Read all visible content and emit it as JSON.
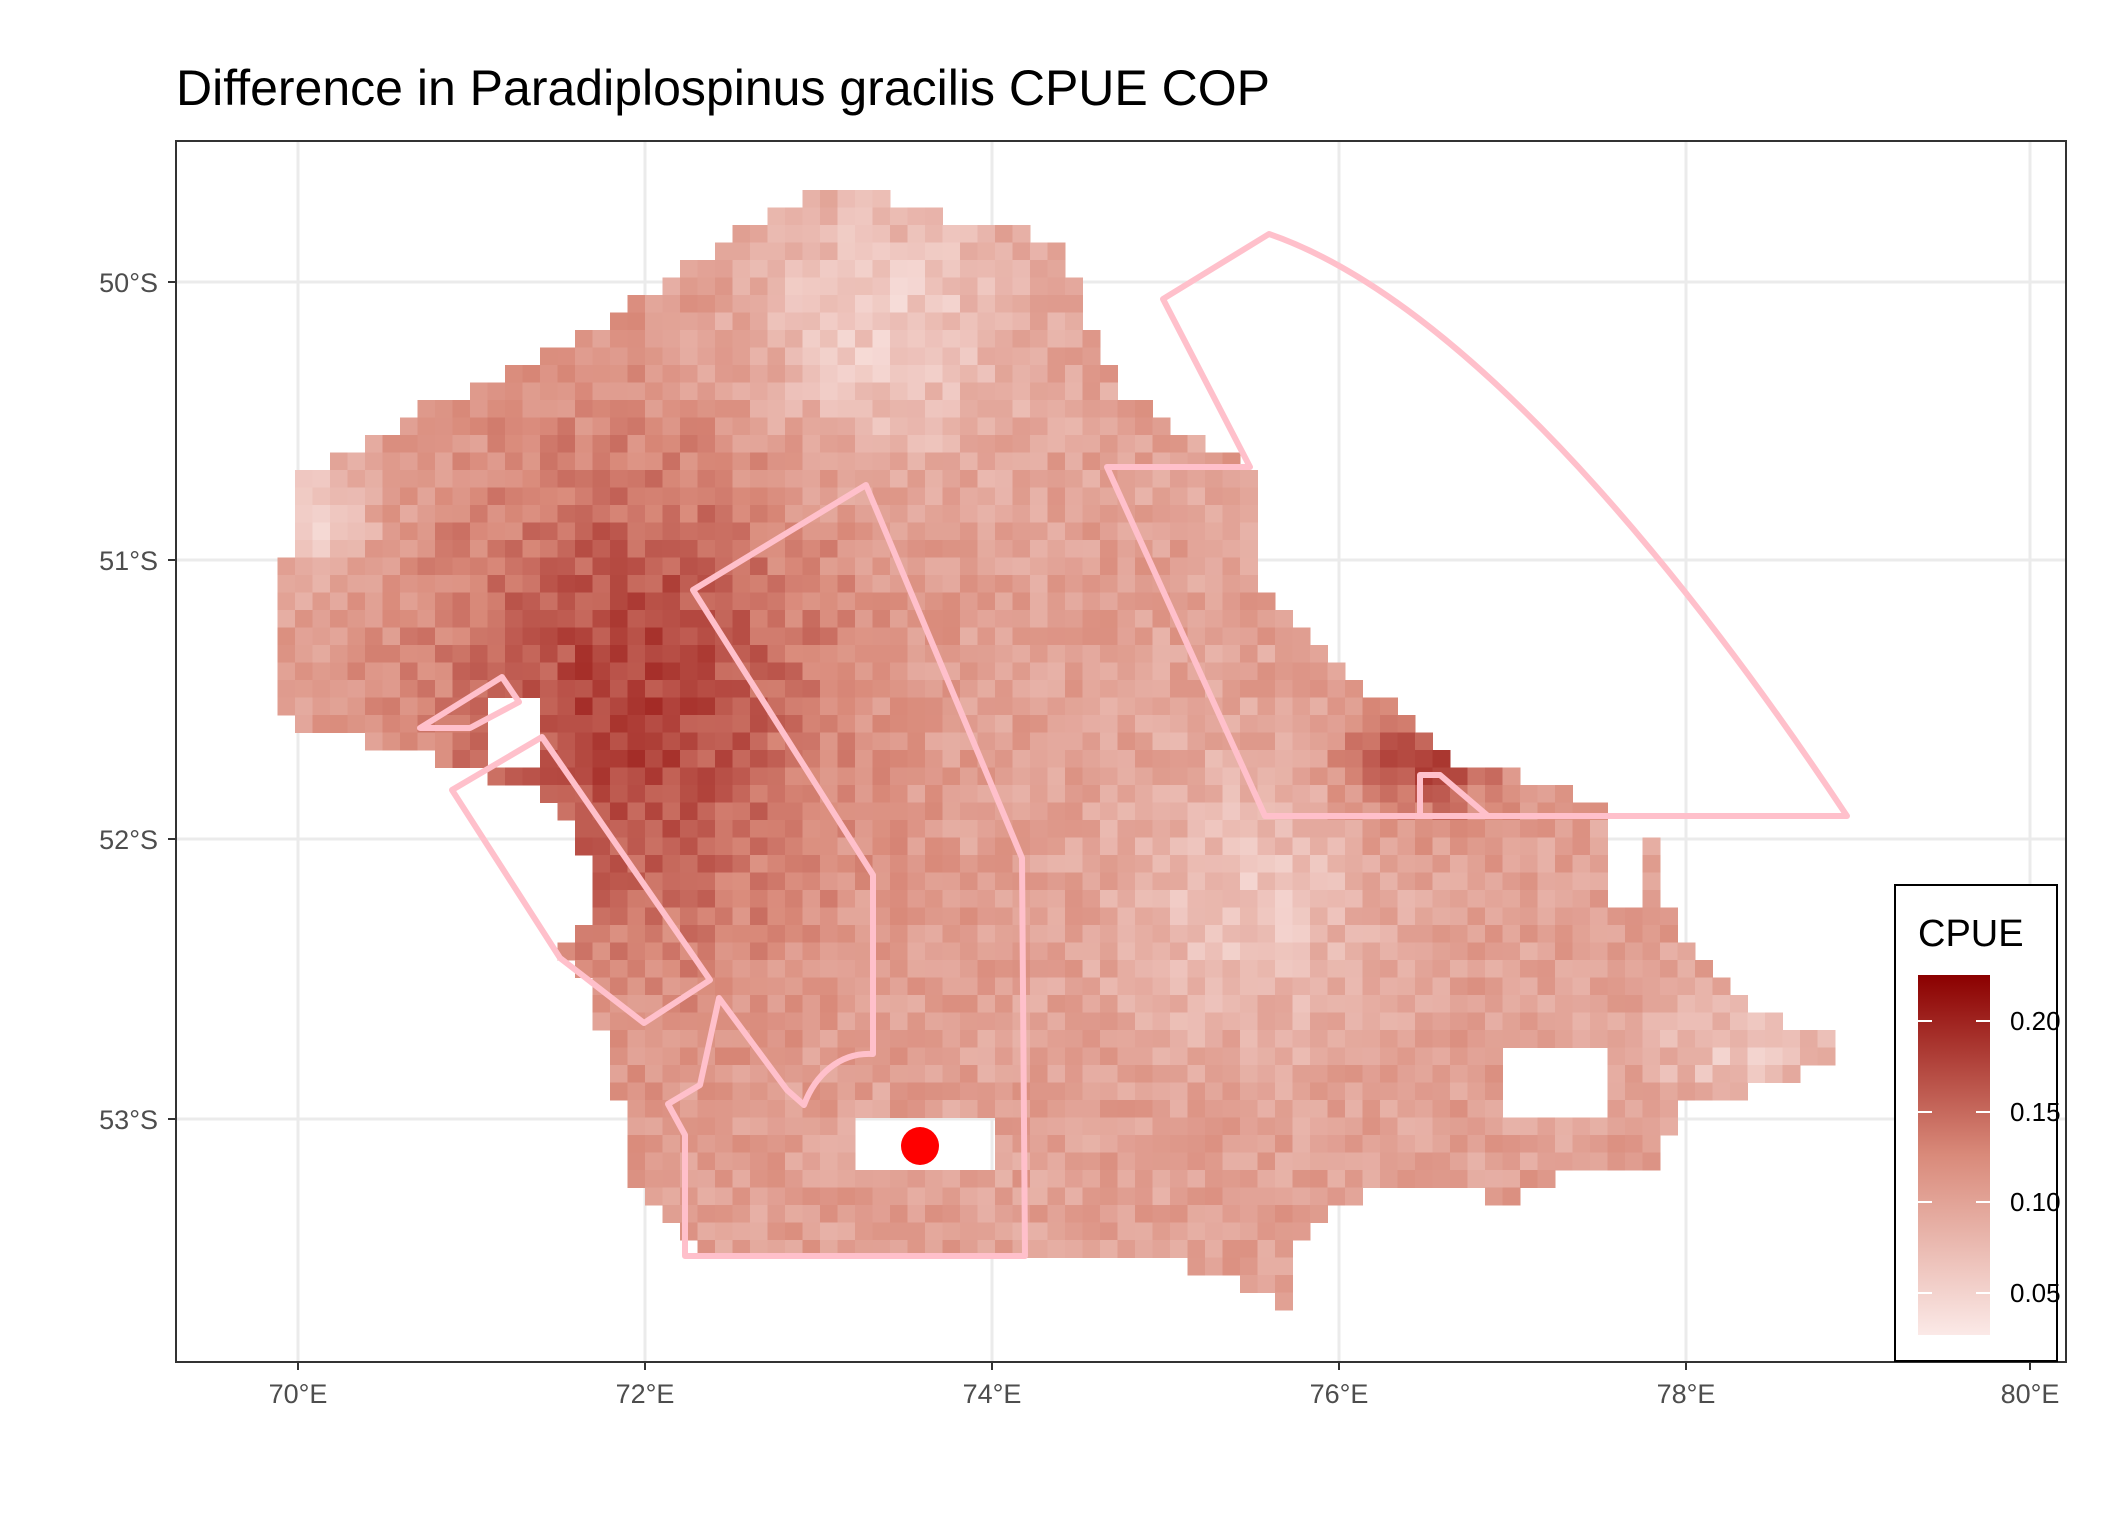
{
  "title": "Difference in  Paradiplospinus gracilis CPUE COP",
  "map": {
    "x_ticks": [
      "70°E",
      "72°E",
      "74°E",
      "76°E",
      "78°E",
      "80°E"
    ],
    "y_ticks": [
      "50°S",
      "51°S",
      "52°S",
      "53°S"
    ],
    "xlim_deg_e": [
      69.3,
      80.2
    ],
    "ylim_deg_s": [
      53.9,
      49.52
    ],
    "colors": {
      "background": "#ffffff",
      "grid": "#ebebeb",
      "panel_border": "#333333",
      "low": "#fbe9e7",
      "high": "#8b0000",
      "polygon_outline": "#ffc0cb",
      "marker": "#ff0000"
    },
    "marker_point": {
      "lon": 73.6,
      "lat": -53.1
    }
  },
  "legend": {
    "title": "CPUE",
    "breaks": [
      "0.05",
      "0.10",
      "0.15",
      "0.20"
    ],
    "range": [
      0.02,
      0.23
    ]
  }
}
